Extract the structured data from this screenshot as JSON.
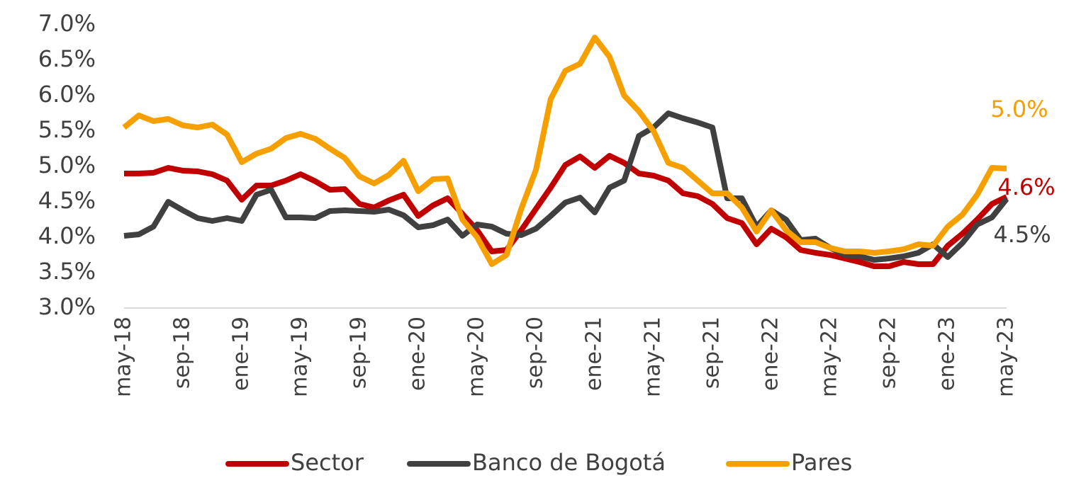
{
  "chart_data": {
    "type": "line",
    "categories": [
      "may-18",
      null,
      null,
      null,
      "sep-18",
      null,
      null,
      null,
      "ene-19",
      null,
      null,
      null,
      "may-19",
      null,
      null,
      null,
      "sep-19",
      null,
      null,
      null,
      "ene-20",
      null,
      null,
      null,
      "may-20",
      null,
      null,
      null,
      "sep-20",
      null,
      null,
      null,
      "ene-21",
      null,
      null,
      null,
      "may-21",
      null,
      null,
      null,
      "sep-21",
      null,
      null,
      null,
      "ene-22",
      null,
      null,
      null,
      "may-22",
      null,
      null,
      null,
      "sep-22",
      null,
      null,
      null,
      "ene-23",
      null,
      null,
      null,
      "may-23"
    ],
    "series": [
      {
        "name": "Sector",
        "color": "#c00000",
        "values": [
          4.9,
          4.9,
          4.91,
          4.98,
          4.94,
          4.93,
          4.89,
          4.8,
          4.53,
          4.73,
          4.73,
          4.8,
          4.89,
          4.79,
          4.67,
          4.68,
          4.47,
          4.42,
          4.52,
          4.6,
          4.3,
          4.45,
          4.55,
          4.33,
          4.1,
          3.8,
          3.82,
          4.1,
          4.4,
          4.7,
          5.02,
          5.14,
          4.98,
          5.15,
          5.05,
          4.9,
          4.87,
          4.8,
          4.62,
          4.58,
          4.47,
          4.27,
          4.2,
          3.9,
          4.12,
          4.0,
          3.82,
          3.78,
          3.75,
          3.7,
          3.65,
          3.59,
          3.59,
          3.65,
          3.62,
          3.62,
          3.88,
          4.05,
          4.25,
          4.47,
          4.57
        ],
        "value_labels": [
          null,
          null,
          null,
          null,
          null,
          null,
          null,
          null,
          null,
          null,
          null,
          null,
          null,
          null,
          null,
          null,
          null,
          null,
          null,
          null,
          null,
          null,
          null,
          null,
          null,
          null,
          null,
          null,
          null,
          null,
          null,
          null,
          null,
          null,
          null,
          null,
          null,
          null,
          null,
          null,
          null,
          null,
          null,
          null,
          null,
          null,
          null,
          null,
          null,
          null,
          null,
          null,
          null,
          null,
          null,
          null,
          null,
          null,
          null,
          null,
          "4.6%"
        ]
      },
      {
        "name": "Banco de Bogotá",
        "color": "#404040",
        "values": [
          4.02,
          4.04,
          4.15,
          4.5,
          4.38,
          4.27,
          4.23,
          4.27,
          4.23,
          4.6,
          4.67,
          4.28,
          4.28,
          4.27,
          4.37,
          4.38,
          4.37,
          4.36,
          4.39,
          4.31,
          4.14,
          4.17,
          4.25,
          4.02,
          4.18,
          4.15,
          4.05,
          4.03,
          4.12,
          4.3,
          4.49,
          4.56,
          4.35,
          4.7,
          4.8,
          5.43,
          5.55,
          5.75,
          5.68,
          5.62,
          5.55,
          4.55,
          4.55,
          4.15,
          4.38,
          4.25,
          3.96,
          3.98,
          3.85,
          3.75,
          3.73,
          3.68,
          3.7,
          3.73,
          3.78,
          3.9,
          3.72,
          3.92,
          4.18,
          4.28,
          4.54
        ],
        "value_labels": [
          null,
          null,
          null,
          null,
          null,
          null,
          null,
          null,
          null,
          null,
          null,
          null,
          null,
          null,
          null,
          null,
          null,
          null,
          null,
          null,
          null,
          null,
          null,
          null,
          null,
          null,
          null,
          null,
          null,
          null,
          null,
          null,
          null,
          null,
          null,
          null,
          null,
          null,
          null,
          null,
          null,
          null,
          null,
          null,
          null,
          null,
          null,
          null,
          null,
          null,
          null,
          null,
          null,
          null,
          null,
          null,
          null,
          null,
          null,
          null,
          "4.5%"
        ]
      },
      {
        "name": "Pares",
        "color": "#f5a000",
        "values": [
          5.55,
          5.72,
          5.64,
          5.67,
          5.58,
          5.55,
          5.59,
          5.45,
          5.06,
          5.18,
          5.25,
          5.4,
          5.46,
          5.39,
          5.25,
          5.12,
          4.86,
          4.76,
          4.88,
          5.08,
          4.65,
          4.82,
          4.83,
          4.25,
          4.0,
          3.62,
          3.75,
          4.4,
          4.95,
          5.95,
          6.35,
          6.45,
          6.82,
          6.55,
          6.0,
          5.78,
          5.5,
          5.05,
          4.98,
          4.8,
          4.62,
          4.62,
          4.42,
          4.08,
          4.38,
          4.1,
          3.93,
          3.93,
          3.85,
          3.8,
          3.8,
          3.78,
          3.8,
          3.83,
          3.9,
          3.88,
          4.15,
          4.32,
          4.6,
          4.98,
          4.97
        ],
        "value_labels": [
          null,
          null,
          null,
          null,
          null,
          null,
          null,
          null,
          null,
          null,
          null,
          null,
          null,
          null,
          null,
          null,
          null,
          null,
          null,
          null,
          null,
          null,
          null,
          null,
          null,
          null,
          null,
          null,
          null,
          null,
          null,
          null,
          null,
          null,
          null,
          null,
          null,
          null,
          null,
          null,
          null,
          null,
          null,
          null,
          null,
          null,
          null,
          null,
          null,
          null,
          null,
          null,
          null,
          null,
          null,
          null,
          null,
          null,
          null,
          null,
          "5.0%"
        ]
      }
    ],
    "ylim": [
      3.0,
      7.0
    ],
    "yticks": [
      {
        "value": 3.0,
        "label": "3.0%"
      },
      {
        "value": 3.5,
        "label": "3.5%"
      },
      {
        "value": 4.0,
        "label": "4.0%"
      },
      {
        "value": 4.5,
        "label": "4.5%"
      },
      {
        "value": 5.0,
        "label": "5.0%"
      },
      {
        "value": 5.5,
        "label": "5.5%"
      },
      {
        "value": 6.0,
        "label": "6.0%"
      },
      {
        "value": 6.5,
        "label": "6.5%"
      },
      {
        "value": 7.0,
        "label": "7.0%"
      }
    ],
    "grid": false,
    "legend": "bottom"
  }
}
